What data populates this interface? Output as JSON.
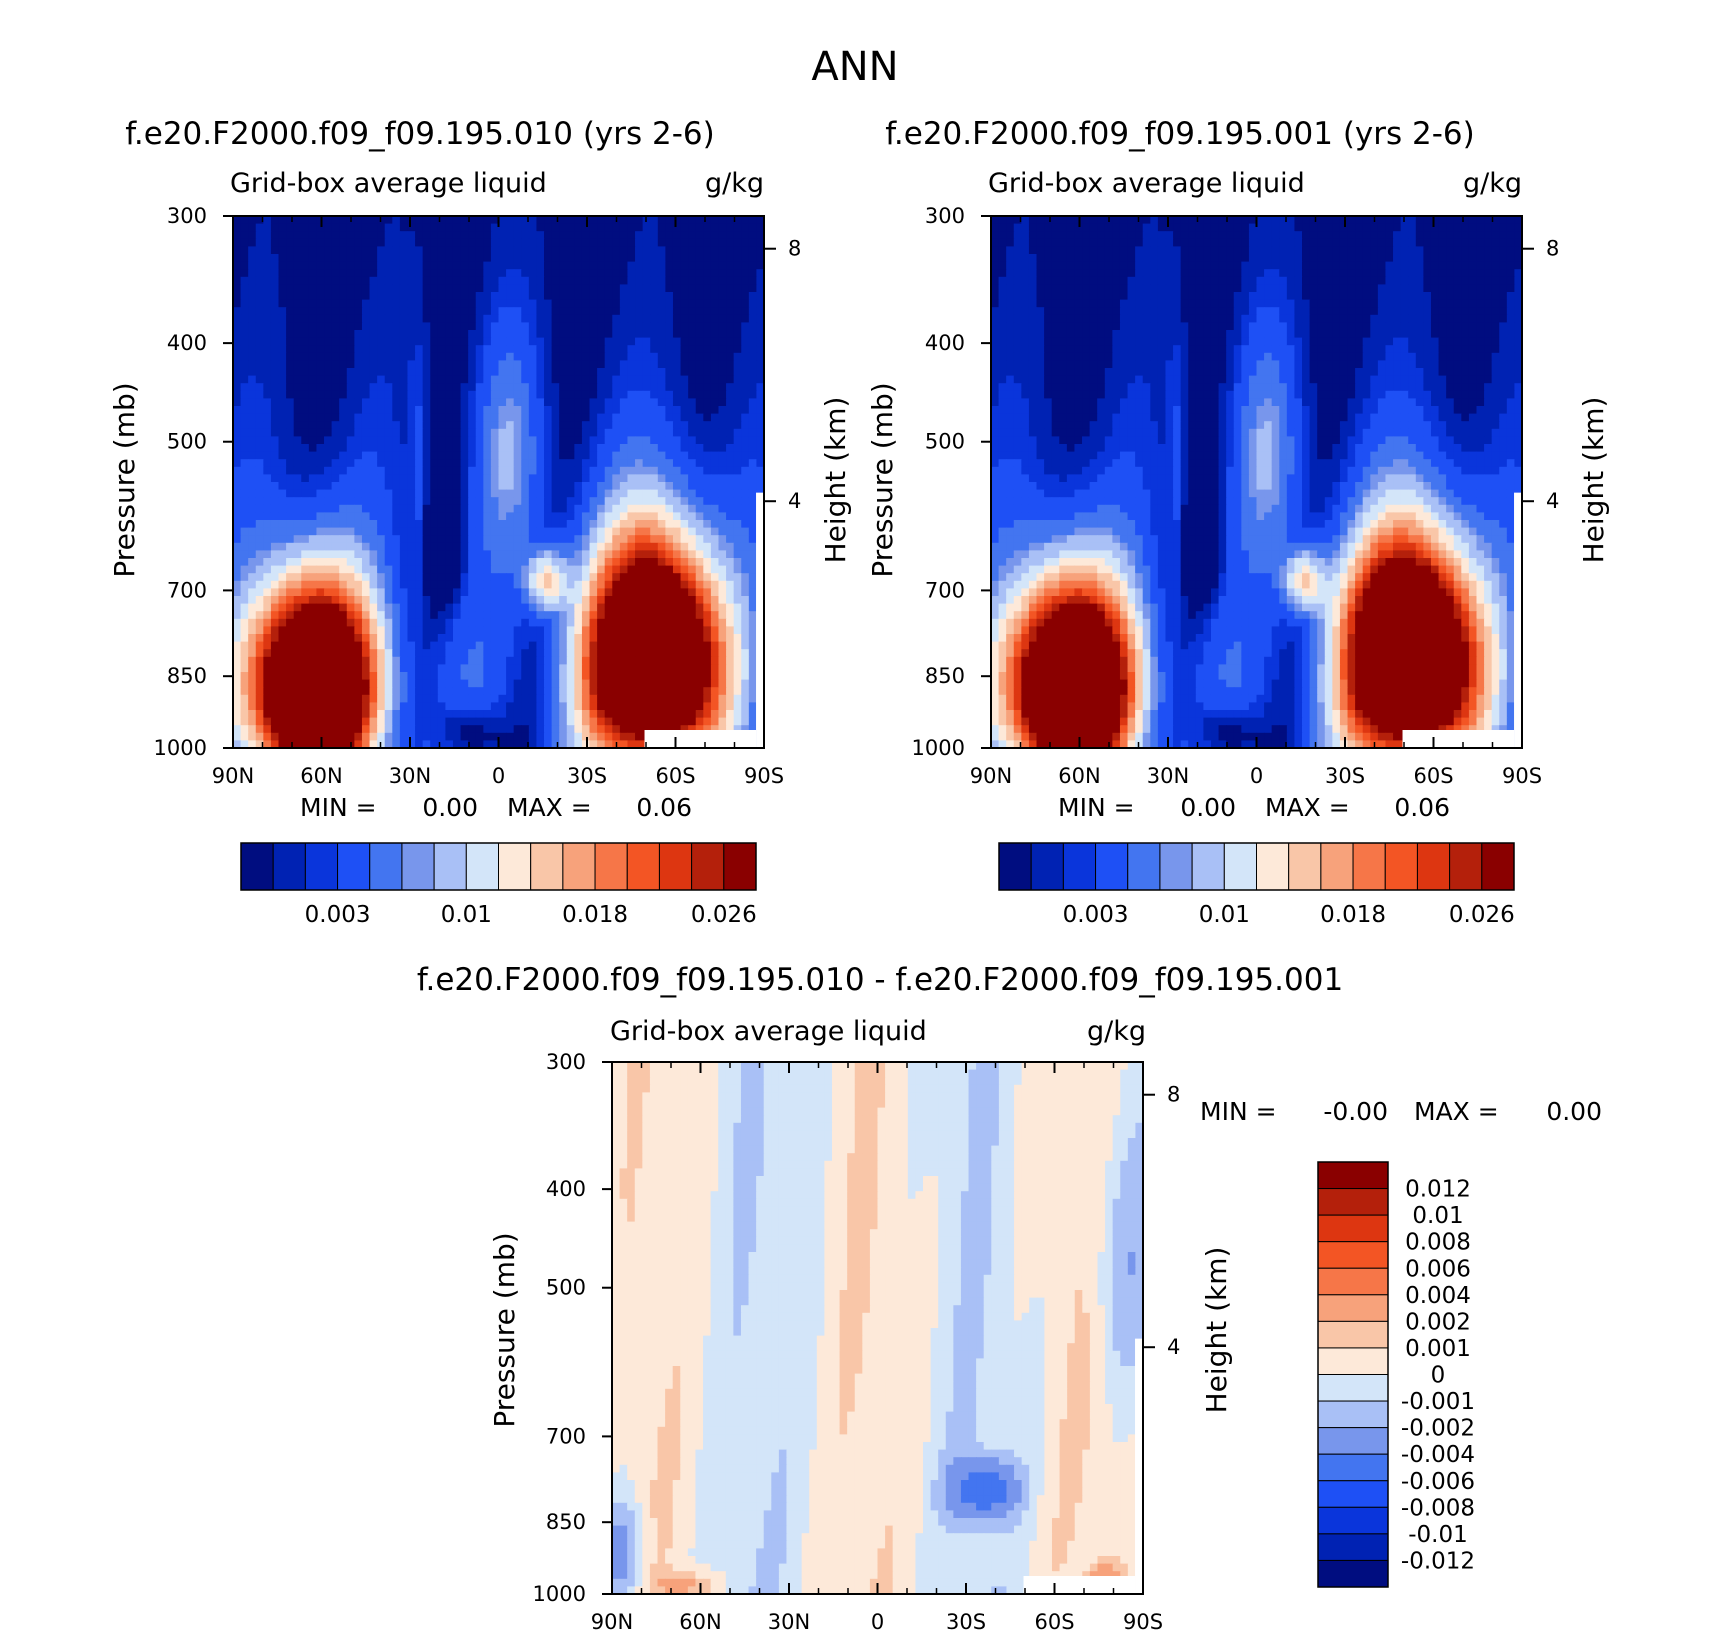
{
  "figure": {
    "title": "ANN"
  },
  "colors": {
    "abs_levels": [
      "#000d80",
      "#0022b3",
      "#0a35db",
      "#1e50f5",
      "#4375f0",
      "#7896ec",
      "#a9c0f6",
      "#d3e5f9",
      "#fde9d9",
      "#f9c6a8",
      "#f7a27b",
      "#f67648",
      "#f35524",
      "#dd3611",
      "#b4200b",
      "#8a0000"
    ],
    "diff_levels": [
      "#8a0000",
      "#b4200b",
      "#dd3611",
      "#f35524",
      "#f67648",
      "#f7a27b",
      "#f9c6a8",
      "#fde9d9",
      "#d3e5f9",
      "#a9c0f6",
      "#7896ec",
      "#4375f0",
      "#1e50f5",
      "#0a35db",
      "#0022b3",
      "#000d80"
    ]
  },
  "chart_data": [
    {
      "type": "heatmap",
      "title": "f.e20.F2000.f09_f09.195.010 (yrs 2-6)",
      "left_string": "Grid-box average liquid",
      "right_string": "g/kg",
      "ylabel": "Pressure (mb)",
      "y2label": "Height (km)",
      "x_ticks": [
        "90N",
        "60N",
        "30N",
        "0",
        "30S",
        "60S",
        "90S"
      ],
      "y_ticks": [
        300,
        400,
        500,
        700,
        850,
        1000
      ],
      "y2_ticks": [
        8,
        4
      ],
      "ylim": [
        1000,
        300
      ],
      "stats": {
        "min_label": "MIN =",
        "min": "0.00",
        "max_label": "MAX =",
        "max": "0.06"
      },
      "colorbar": {
        "orientation": "horizontal",
        "labels": [
          "0.003",
          "0.01",
          "0.018",
          "0.026"
        ]
      }
    },
    {
      "type": "heatmap",
      "title": "f.e20.F2000.f09_f09.195.001 (yrs 2-6)",
      "left_string": "Grid-box average liquid",
      "right_string": "g/kg",
      "ylabel": "Pressure (mb)",
      "y2label": "Height (km)",
      "x_ticks": [
        "90N",
        "60N",
        "30N",
        "0",
        "30S",
        "60S",
        "90S"
      ],
      "y_ticks": [
        300,
        400,
        500,
        700,
        850,
        1000
      ],
      "y2_ticks": [
        8,
        4
      ],
      "ylim": [
        1000,
        300
      ],
      "stats": {
        "min_label": "MIN =",
        "min": "0.00",
        "max_label": "MAX =",
        "max": "0.06"
      },
      "colorbar": {
        "orientation": "horizontal",
        "labels": [
          "0.003",
          "0.01",
          "0.018",
          "0.026"
        ]
      }
    },
    {
      "type": "heatmap",
      "title": "f.e20.F2000.f09_f09.195.010 - f.e20.F2000.f09_f09.195.001",
      "left_string": "Grid-box average liquid",
      "right_string": "g/kg",
      "ylabel": "Pressure (mb)",
      "y2label": "Height (km)",
      "x_ticks": [
        "90N",
        "60N",
        "30N",
        "0",
        "30S",
        "60S",
        "90S"
      ],
      "y_ticks": [
        300,
        400,
        500,
        700,
        850,
        1000
      ],
      "y2_ticks": [
        8,
        4
      ],
      "ylim": [
        1000,
        300
      ],
      "stats": {
        "min_label": "MIN =",
        "min": "-0.00",
        "max_label": "MAX =",
        "max": "0.00"
      },
      "colorbar": {
        "orientation": "vertical",
        "labels": [
          "0.012",
          "0.01",
          "0.008",
          "0.006",
          "0.004",
          "0.002",
          "0.001",
          "0",
          "-0.001",
          "-0.002",
          "-0.004",
          "-0.006",
          "-0.008",
          "-0.01",
          "-0.012"
        ]
      }
    }
  ]
}
